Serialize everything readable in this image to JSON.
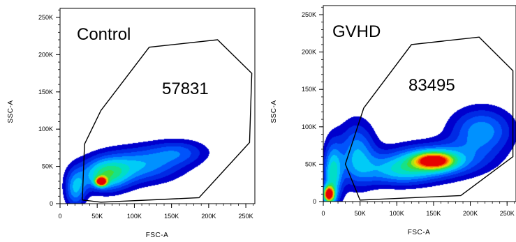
{
  "chart_data": [
    {
      "type": "scatter",
      "subtype": "density-contour",
      "sample_label": "Control",
      "gate_count": "57831",
      "xlabel": "FSC-A",
      "ylabel": "SSC-A",
      "xlim": [
        0,
        262144
      ],
      "ylim": [
        0,
        262144
      ],
      "x_ticks": [
        0,
        50000,
        100000,
        150000,
        200000,
        250000
      ],
      "x_tick_labels": [
        "0",
        "50K",
        "100K",
        "150K",
        "200K",
        "250K"
      ],
      "y_ticks": [
        0,
        50000,
        100000,
        150000,
        200000,
        250000
      ],
      "y_tick_labels": [
        "0",
        "50K",
        "100K",
        "150K",
        "200K",
        "250K"
      ],
      "gate_polygon": [
        [
          30000,
          5000
        ],
        [
          33000,
          80000
        ],
        [
          55000,
          125000
        ],
        [
          120000,
          210000
        ],
        [
          212000,
          220000
        ],
        [
          258000,
          175000
        ],
        [
          255000,
          82000
        ],
        [
          187000,
          8000
        ],
        [
          55000,
          2000
        ]
      ],
      "density_clusters": [
        {
          "x": 55000,
          "y": 30000,
          "sx": 5000,
          "sy": 4000,
          "peak": 1.0
        },
        {
          "x": 60000,
          "y": 38000,
          "sx": 22000,
          "sy": 15000,
          "peak": 0.45
        },
        {
          "x": 105000,
          "y": 52000,
          "sx": 40000,
          "sy": 17000,
          "peak": 0.35
        },
        {
          "x": 160000,
          "y": 70000,
          "sx": 28000,
          "sy": 12000,
          "peak": 0.22
        },
        {
          "x": 20000,
          "y": 20000,
          "sx": 10000,
          "sy": 18000,
          "peak": 0.35
        }
      ]
    },
    {
      "type": "scatter",
      "subtype": "density-contour",
      "sample_label": "GVHD",
      "gate_count": "83495",
      "xlabel": "FSC-A",
      "ylabel": "SSC-A",
      "xlim": [
        0,
        262144
      ],
      "ylim": [
        0,
        262144
      ],
      "x_ticks": [
        0,
        50000,
        100000,
        150000,
        200000,
        250000
      ],
      "x_tick_labels": [
        "0",
        "50K",
        "100K",
        "150K",
        "200K",
        "250K"
      ],
      "y_ticks": [
        0,
        50000,
        100000,
        150000,
        200000,
        250000
      ],
      "y_tick_labels": [
        "0",
        "50K",
        "100K",
        "150K",
        "200K",
        "250K"
      ],
      "gate_polygon": [
        [
          50000,
          2000
        ],
        [
          30000,
          50000
        ],
        [
          55000,
          125000
        ],
        [
          120000,
          210000
        ],
        [
          212000,
          220000
        ],
        [
          258000,
          175000
        ],
        [
          258000,
          60000
        ],
        [
          187000,
          8000
        ]
      ],
      "density_clusters": [
        {
          "x": 7000,
          "y": 10000,
          "sx": 5000,
          "sy": 7000,
          "peak": 1.0
        },
        {
          "x": 12000,
          "y": 35000,
          "sx": 9000,
          "sy": 30000,
          "peak": 0.45
        },
        {
          "x": 45000,
          "y": 65000,
          "sx": 18000,
          "sy": 30000,
          "peak": 0.35
        },
        {
          "x": 150000,
          "y": 55000,
          "sx": 45000,
          "sy": 16000,
          "peak": 0.45
        },
        {
          "x": 150000,
          "y": 55000,
          "sx": 17000,
          "sy": 7000,
          "peak": 0.75
        },
        {
          "x": 215000,
          "y": 95000,
          "sx": 30000,
          "sy": 22000,
          "peak": 0.35
        },
        {
          "x": 100000,
          "y": 40000,
          "sx": 35000,
          "sy": 14000,
          "peak": 0.3
        }
      ]
    }
  ]
}
